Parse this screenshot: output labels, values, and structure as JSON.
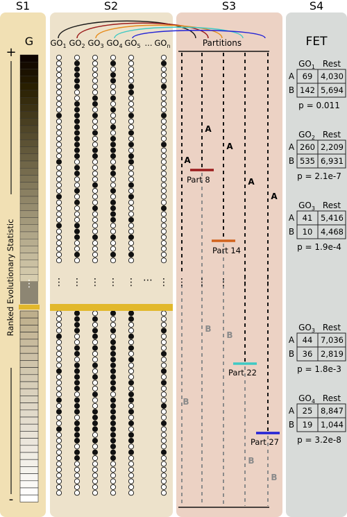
{
  "sections": {
    "s1": {
      "label": "S1"
    },
    "s2": {
      "label": "S2"
    },
    "s3": {
      "label": "S3"
    },
    "s4": {
      "label": "S4"
    }
  },
  "s1": {
    "gene_label": "G",
    "axis_label": "Ranked Evolutionary Statistic",
    "top_sign": "+",
    "bottom_sign": "-",
    "ellipsis": "⋮"
  },
  "s2": {
    "go_labels": [
      {
        "base": "GO",
        "sub": "1"
      },
      {
        "base": "GO",
        "sub": "2"
      },
      {
        "base": "GO",
        "sub": "3"
      },
      {
        "base": "GO",
        "sub": "4"
      },
      {
        "base": "GO",
        "sub": "5"
      },
      {
        "base": "...",
        "sub": ""
      },
      {
        "base": "GO",
        "sub": "n"
      }
    ],
    "row_ellipsis": "⋮",
    "col_ellipsis": "⋯"
  },
  "s3": {
    "header": "Partitions",
    "set_a": "A",
    "set_b": "B",
    "partitions": [
      {
        "label": "Part 8",
        "color": "#9b1c1c"
      },
      {
        "label": "Part 14",
        "color": "#d2621c"
      },
      {
        "label": "Part 22",
        "color": "#3ec9c4"
      },
      {
        "label": "Part 27",
        "color": "#2323d6"
      }
    ]
  },
  "s4": {
    "title": "FET",
    "tables": [
      {
        "go": "GO",
        "sub": "1",
        "rest": "Rest",
        "a": [
          "69",
          "4,030"
        ],
        "b": [
          "142",
          "5,694"
        ],
        "p": "p = 0.011"
      },
      {
        "go": "GO",
        "sub": "2",
        "rest": "Rest",
        "a": [
          "260",
          "2,209"
        ],
        "b": [
          "535",
          "6,931"
        ],
        "p": "p = 2.1e-7"
      },
      {
        "go": "GO",
        "sub": "3",
        "rest": "Rest",
        "a": [
          "41",
          "5,416"
        ],
        "b": [
          "10",
          "4,468"
        ],
        "p": "p = 1.9e-4"
      },
      {
        "go": "GO",
        "sub": "3",
        "rest": "Rest",
        "a": [
          "44",
          "7,036"
        ],
        "b": [
          "36",
          "2,819"
        ],
        "p": "p = 1.8e-3"
      },
      {
        "go": "GO",
        "sub": "4",
        "rest": "Rest",
        "a": [
          "25",
          "8,847"
        ],
        "b": [
          "19",
          "1,044"
        ],
        "p": "p = 3.2e-8"
      }
    ],
    "row_a": "A",
    "row_b": "B"
  },
  "colors": {
    "s1_panel": "#f1e0b4",
    "s2_panel": "#ede2cb",
    "s3_panel": "#ecd2c4",
    "s4_panel": "#d8dbd9",
    "highlight": "#e2b82c",
    "arc_colors": [
      "#1a1a1a",
      "#9b1c1c",
      "#e68a18",
      "#3ec9c4",
      "#2323d6"
    ]
  }
}
